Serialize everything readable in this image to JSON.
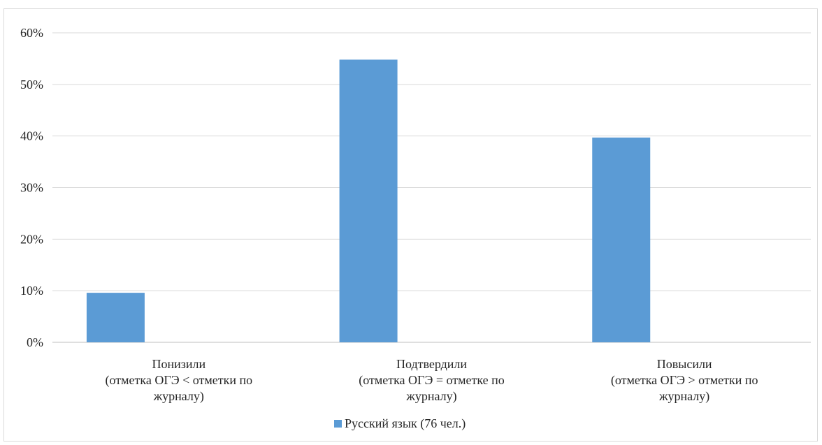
{
  "chart_data": {
    "type": "bar",
    "categories": [
      [
        "Понизили",
        "(отметка ОГЭ < отметки по",
        "журналу)"
      ],
      [
        "Подтвердили",
        "(отметка ОГЭ = отметке по",
        "журналу)"
      ],
      [
        "Повысили",
        "(отметка ОГЭ > отметки по",
        "журналу)"
      ]
    ],
    "series": [
      {
        "name": "Русский язык (76 чел.)",
        "values": [
          9.6,
          54.8,
          39.7
        ],
        "color": "#5b9bd5"
      }
    ],
    "ylim": [
      0,
      60
    ],
    "yticks": [
      0,
      10,
      20,
      30,
      40,
      50,
      60
    ],
    "ytick_suffix": "%",
    "grid": true,
    "gridColor": "#d9d9d9",
    "axisColor": "#bfbfbf",
    "legend": "bottom",
    "title": "",
    "xlabel": "",
    "ylabel": ""
  }
}
